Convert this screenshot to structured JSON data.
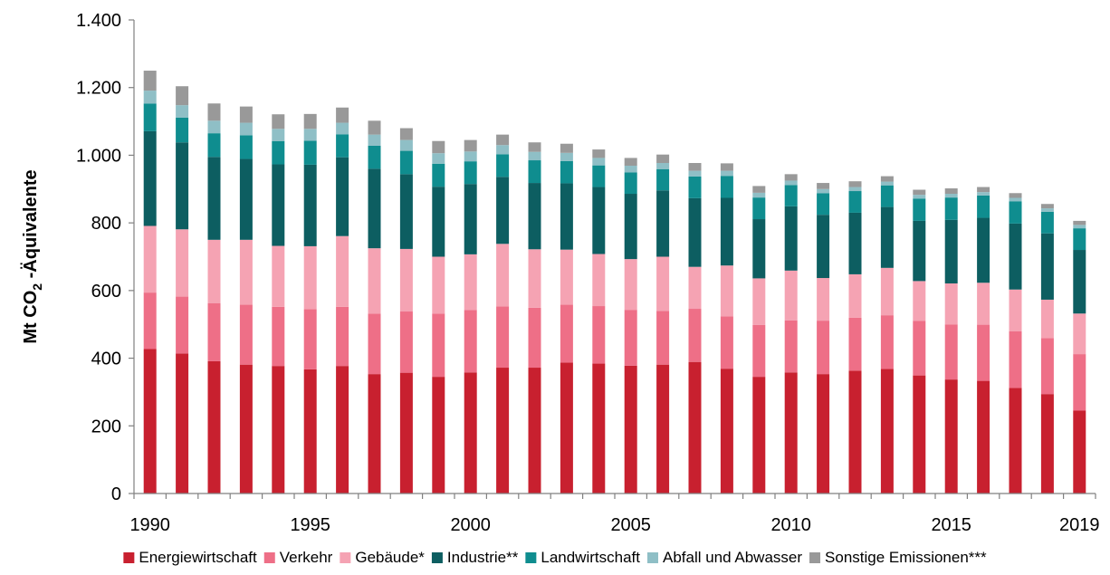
{
  "chart_data": {
    "type": "bar",
    "stacked": true,
    "categories": [
      "1990",
      "1991",
      "1992",
      "1993",
      "1994",
      "1995",
      "1996",
      "1997",
      "1998",
      "1999",
      "2000",
      "2001",
      "2002",
      "2003",
      "2004",
      "2005",
      "2006",
      "2007",
      "2008",
      "2009",
      "2010",
      "2011",
      "2012",
      "2013",
      "2014",
      "2015",
      "2016",
      "2017",
      "2018",
      "2019"
    ],
    "x_tick_labels": [
      "1990",
      "1995",
      "2000",
      "2005",
      "2010",
      "2015",
      "2019"
    ],
    "ylabel_parts": {
      "main": "Mt CO",
      "subscript": "2",
      "suffix": " -Äquivalente"
    },
    "ylim": [
      0,
      1400
    ],
    "y_ticks": [
      0,
      200,
      400,
      600,
      800,
      1000,
      1200,
      1400
    ],
    "y_tick_labels": [
      "0",
      "200",
      "400",
      "600",
      "800",
      "1.000",
      "1.200",
      "1.400"
    ],
    "grid": false,
    "legend_position": "bottom",
    "series": [
      {
        "name": "Energiewirtschaft",
        "color": "#c8202f",
        "values": [
          427,
          414,
          391,
          381,
          377,
          367,
          377,
          353,
          357,
          345,
          358,
          372,
          372,
          387,
          384,
          378,
          381,
          389,
          369,
          345,
          358,
          353,
          363,
          368,
          349,
          337,
          333,
          312,
          294,
          245
        ]
      },
      {
        "name": "Verkehr",
        "color": "#ee6f87",
        "values": [
          167,
          168,
          172,
          177,
          175,
          178,
          175,
          179,
          181,
          187,
          184,
          181,
          177,
          171,
          170,
          165,
          159,
          157,
          155,
          153,
          154,
          158,
          157,
          159,
          161,
          163,
          166,
          168,
          165,
          167
        ]
      },
      {
        "name": "Gebäude*",
        "color": "#f5a3b3",
        "values": [
          197,
          199,
          187,
          192,
          180,
          186,
          209,
          193,
          185,
          168,
          165,
          185,
          173,
          163,
          154,
          150,
          160,
          124,
          150,
          138,
          147,
          126,
          128,
          140,
          118,
          121,
          124,
          123,
          114,
          120
        ]
      },
      {
        "name": "Industrie**",
        "color": "#0d5e61",
        "values": [
          280,
          257,
          245,
          239,
          241,
          241,
          233,
          235,
          221,
          207,
          208,
          198,
          196,
          196,
          198,
          193,
          196,
          203,
          200,
          175,
          190,
          187,
          182,
          180,
          178,
          188,
          192,
          195,
          196,
          188
        ]
      },
      {
        "name": "Landwirtschaft",
        "color": "#0f8d8f",
        "values": [
          82,
          73,
          70,
          70,
          69,
          71,
          68,
          68,
          69,
          68,
          67,
          67,
          67,
          66,
          64,
          63,
          63,
          64,
          65,
          64,
          63,
          64,
          64,
          64,
          66,
          66,
          66,
          66,
          64,
          64
        ]
      },
      {
        "name": "Abfall und Abwasser",
        "color": "#8fbfc6",
        "values": [
          38,
          37,
          37,
          37,
          36,
          35,
          34,
          33,
          32,
          31,
          29,
          27,
          25,
          24,
          22,
          20,
          18,
          17,
          15,
          14,
          13,
          12,
          12,
          11,
          11,
          11,
          10,
          10,
          10,
          10
        ]
      },
      {
        "name": "Sonstige Emissionen***",
        "color": "#999999",
        "values": [
          59,
          56,
          51,
          48,
          43,
          44,
          45,
          41,
          35,
          36,
          34,
          31,
          28,
          27,
          25,
          23,
          25,
          23,
          22,
          20,
          19,
          18,
          17,
          16,
          15,
          16,
          15,
          14,
          13,
          12
        ]
      }
    ]
  }
}
